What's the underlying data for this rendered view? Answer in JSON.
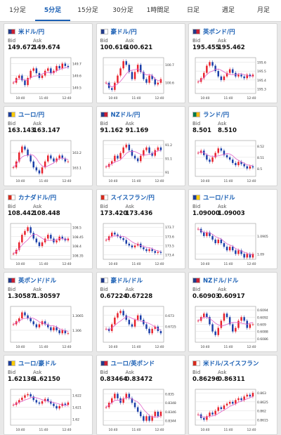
{
  "tabs": [
    "1分足",
    "5分足",
    "15分足",
    "30分足",
    "1時間足",
    "日足",
    "週足",
    "月足"
  ],
  "active_tab": "5分足",
  "labels": {
    "bid": "Bid",
    "ask": "Ask"
  },
  "colors": {
    "up": "#e8202a",
    "down": "#1a3ea8",
    "ma": "#e060c8",
    "link": "#1a5fb4"
  },
  "cards": [
    {
      "name": "米ドル/円",
      "flag": [
        "#223c8a",
        "#cc2233"
      ],
      "bid": "149.672",
      "ask": "149.674",
      "xticks": [
        "10:40",
        "11:40",
        "12:40"
      ],
      "yticks": [
        "149.7",
        "149.6",
        "149.5"
      ],
      "ylim": [
        149.45,
        149.75
      ],
      "closes": [
        149.54,
        149.58,
        149.6,
        149.56,
        149.52,
        149.58,
        149.64,
        149.66,
        149.62,
        149.58,
        149.6,
        149.64,
        149.66,
        149.62,
        149.64,
        149.68,
        149.66,
        149.7,
        149.68,
        149.67
      ]
    },
    {
      "name": "豪ドル/円",
      "flag": [
        "#223c8a",
        "#ffffff"
      ],
      "bid": "100.616",
      "ask": "100.621",
      "xticks": [
        "10:40",
        "11:40",
        "12:40"
      ],
      "yticks": [
        "100.7",
        "100.6"
      ],
      "ylim": [
        100.54,
        100.74
      ],
      "closes": [
        100.6,
        100.57,
        100.56,
        100.6,
        100.64,
        100.68,
        100.72,
        100.7,
        100.66,
        100.62,
        100.66,
        100.7,
        100.66,
        100.62,
        100.6,
        100.64,
        100.62,
        100.59,
        100.6,
        100.62
      ]
    },
    {
      "name": "英ポンド/円",
      "flag": [
        "#223c8a",
        "#cc2233"
      ],
      "bid": "195.455",
      "ask": "195.462",
      "xticks": [
        "10:40",
        "11:40",
        "12:40"
      ],
      "yticks": [
        "195.6",
        "195.5",
        "195.4",
        "195.3"
      ],
      "ylim": [
        195.25,
        195.65
      ],
      "closes": [
        195.38,
        195.42,
        195.48,
        195.56,
        195.6,
        195.56,
        195.5,
        195.44,
        195.4,
        195.44,
        195.48,
        195.52,
        195.48,
        195.44,
        195.46,
        195.44,
        195.42,
        195.46,
        195.44,
        195.46
      ]
    },
    {
      "name": "ユーロ/円",
      "flag": [
        "#1d3e9e",
        "#ffcc00"
      ],
      "bid": "163.143",
      "ask": "163.147",
      "xticks": [
        "10:40",
        "11:40",
        "12:40"
      ],
      "yticks": [
        "163.2",
        "163.1"
      ],
      "ylim": [
        163.04,
        163.28
      ],
      "closes": [
        163.1,
        163.14,
        163.2,
        163.24,
        163.22,
        163.18,
        163.14,
        163.1,
        163.08,
        163.06,
        163.1,
        163.14,
        163.18,
        163.16,
        163.14,
        163.16,
        163.18,
        163.16,
        163.14,
        163.14
      ]
    },
    {
      "name": "NZドル/円",
      "flag": [
        "#223c8a",
        "#cc2233"
      ],
      "bid": "91.162",
      "ask": "91.169",
      "xticks": [
        "10:40",
        "11:40",
        "12:40"
      ],
      "yticks": [
        "91.2",
        "91.1",
        "91"
      ],
      "ylim": [
        90.97,
        91.23
      ],
      "closes": [
        91.04,
        91.06,
        91.08,
        91.12,
        91.1,
        91.14,
        91.18,
        91.2,
        91.16,
        91.12,
        91.1,
        91.08,
        91.12,
        91.16,
        91.18,
        91.14,
        91.12,
        91.16,
        91.18,
        91.16
      ]
    },
    {
      "name": "ランド/円",
      "flag": [
        "#007a4d",
        "#ffb612"
      ],
      "bid": "8.501",
      "ask": "8.510",
      "xticks": [
        "10:40",
        "11:40",
        "12:40"
      ],
      "yticks": [
        "8.52",
        "8.51",
        "8.5"
      ],
      "ylim": [
        8.493,
        8.525
      ],
      "closes": [
        8.514,
        8.516,
        8.512,
        8.508,
        8.506,
        8.51,
        8.514,
        8.518,
        8.516,
        8.512,
        8.51,
        8.508,
        8.505,
        8.503,
        8.506,
        8.504,
        8.502,
        8.5,
        8.502,
        8.501
      ]
    },
    {
      "name": "カナダドル/円",
      "flag": [
        "#d52b1e",
        "#ffffff"
      ],
      "bid": "108.442",
      "ask": "108.448",
      "xticks": [
        "10:40",
        "11:40",
        "12:40"
      ],
      "yticks": [
        "108.5",
        "108.45",
        "108.4",
        "108.35"
      ],
      "ylim": [
        108.33,
        108.52
      ],
      "closes": [
        108.36,
        108.38,
        108.42,
        108.46,
        108.48,
        108.5,
        108.47,
        108.44,
        108.42,
        108.4,
        108.42,
        108.44,
        108.46,
        108.44,
        108.42,
        108.43,
        108.45,
        108.44,
        108.43,
        108.44
      ]
    },
    {
      "name": "スイスフラン/円",
      "flag": [
        "#d52b1e",
        "#ffffff"
      ],
      "bid": "173.420",
      "ask": "173.436",
      "xticks": [
        "10:40",
        "11:40",
        "12:40"
      ],
      "yticks": [
        "173.7",
        "173.6",
        "173.5",
        "173.4"
      ],
      "ylim": [
        173.35,
        173.74
      ],
      "closes": [
        173.56,
        173.6,
        173.64,
        173.62,
        173.6,
        173.58,
        173.56,
        173.52,
        173.5,
        173.48,
        173.5,
        173.52,
        173.48,
        173.46,
        173.44,
        173.46,
        173.44,
        173.42,
        173.43,
        173.42
      ]
    },
    {
      "name": "ユーロ/ドル",
      "flag": [
        "#1d3e9e",
        "#ffcc00"
      ],
      "bid": "1.09000",
      "ask": "1.09003",
      "xticks": [
        "10:40",
        "11:40",
        "12:40"
      ],
      "yticks": [
        "1.0905",
        "1.09"
      ],
      "ylim": [
        1.08985,
        1.09085
      ],
      "closes": [
        1.0907,
        1.0906,
        1.0905,
        1.0906,
        1.0905,
        1.0904,
        1.0903,
        1.0904,
        1.0903,
        1.0902,
        1.0901,
        1.0902,
        1.0901,
        1.09,
        1.0901,
        1.09,
        1.0899,
        1.09,
        1.0899,
        1.09
      ]
    },
    {
      "name": "英ポンド/ドル",
      "flag": [
        "#223c8a",
        "#cc2233"
      ],
      "bid": "1.30587",
      "ask": "1.30597",
      "xticks": [
        "10:40",
        "11:40",
        "12:40"
      ],
      "yticks": [
        "1.3065",
        "1.306"
      ],
      "ylim": [
        1.3056,
        1.3068
      ],
      "closes": [
        1.3062,
        1.3063,
        1.3064,
        1.3066,
        1.3065,
        1.3064,
        1.3063,
        1.3062,
        1.3061,
        1.3062,
        1.3063,
        1.3062,
        1.3061,
        1.306,
        1.3061,
        1.306,
        1.3059,
        1.306,
        1.3059,
        1.3059
      ]
    },
    {
      "name": "豪ドル/ドル",
      "flag": [
        "#223c8a",
        "#ffffff"
      ],
      "bid": "0.67224",
      "ask": "0.67228",
      "xticks": [
        "10:40",
        "11:40",
        "12:40"
      ],
      "yticks": [
        "0.673",
        "0.6725"
      ],
      "ylim": [
        0.6718,
        0.6734
      ],
      "closes": [
        0.6724,
        0.6723,
        0.6726,
        0.6729,
        0.6731,
        0.6732,
        0.673,
        0.6728,
        0.6726,
        0.6725,
        0.6728,
        0.673,
        0.6728,
        0.6726,
        0.6724,
        0.6722,
        0.6724,
        0.6725,
        0.6723,
        0.6722
      ]
    },
    {
      "name": "NZドル/ドル",
      "flag": [
        "#223c8a",
        "#cc2233"
      ],
      "bid": "0.60903",
      "ask": "0.60917",
      "xticks": [
        "10:40",
        "11:40",
        "12:40"
      ],
      "yticks": [
        "0.6094",
        "0.6092",
        "0.609",
        "0.6088",
        "0.6086"
      ],
      "ylim": [
        0.6085,
        0.6095
      ],
      "closes": [
        0.6091,
        0.6092,
        0.6093,
        0.6092,
        0.609,
        0.6088,
        0.6087,
        0.6089,
        0.6091,
        0.6093,
        0.6092,
        0.609,
        0.6088,
        0.6089,
        0.6091,
        0.6092,
        0.6091,
        0.6089,
        0.609,
        0.609
      ]
    },
    {
      "name": "ユーロ/豪ドル",
      "flag": [
        "#1d3e9e",
        "#ffcc00"
      ],
      "bid": "1.62136",
      "ask": "1.62150",
      "xticks": [
        "10:40",
        "11:40",
        "12:40"
      ],
      "yticks": [
        "1.622",
        "1.621",
        "1.62"
      ],
      "ylim": [
        1.6195,
        1.6225
      ],
      "closes": [
        1.6212,
        1.6214,
        1.6216,
        1.6218,
        1.622,
        1.6221,
        1.6219,
        1.6216,
        1.6214,
        1.6213,
        1.6215,
        1.6217,
        1.6215,
        1.6213,
        1.6211,
        1.6209,
        1.6211,
        1.6213,
        1.6212,
        1.6214
      ]
    },
    {
      "name": "ユーロ/英ポンド",
      "flag": [
        "#223c8a",
        "#cc2233"
      ],
      "bid": "0.83464",
      "ask": "0.83472",
      "xticks": [
        "10:40",
        "11:40",
        "12:40"
      ],
      "yticks": [
        "0.835",
        "0.8348",
        "0.8346",
        "0.8344"
      ],
      "ylim": [
        0.8343,
        0.8351
      ],
      "closes": [
        0.8347,
        0.8348,
        0.8349,
        0.835,
        0.8349,
        0.8348,
        0.8349,
        0.835,
        0.8349,
        0.8348,
        0.8347,
        0.8346,
        0.8345,
        0.8344,
        0.8345,
        0.8344,
        0.8345,
        0.8346,
        0.8345,
        0.8346
      ]
    },
    {
      "name": "米ドル/スイスフラン",
      "flag": [
        "#d52b1e",
        "#ffffff"
      ],
      "bid": "0.86296",
      "ask": "0.86311",
      "xticks": [
        "10:40",
        "11:40",
        "12:40"
      ],
      "yticks": [
        "0.863",
        "0.8625",
        "0.862",
        "0.8615"
      ],
      "ylim": [
        0.8612,
        0.8632
      ],
      "closes": [
        0.8618,
        0.8616,
        0.8615,
        0.8617,
        0.8619,
        0.8618,
        0.862,
        0.8622,
        0.8621,
        0.8623,
        0.8624,
        0.8625,
        0.8624,
        0.8626,
        0.8627,
        0.8626,
        0.8628,
        0.8629,
        0.8628,
        0.863
      ]
    }
  ]
}
